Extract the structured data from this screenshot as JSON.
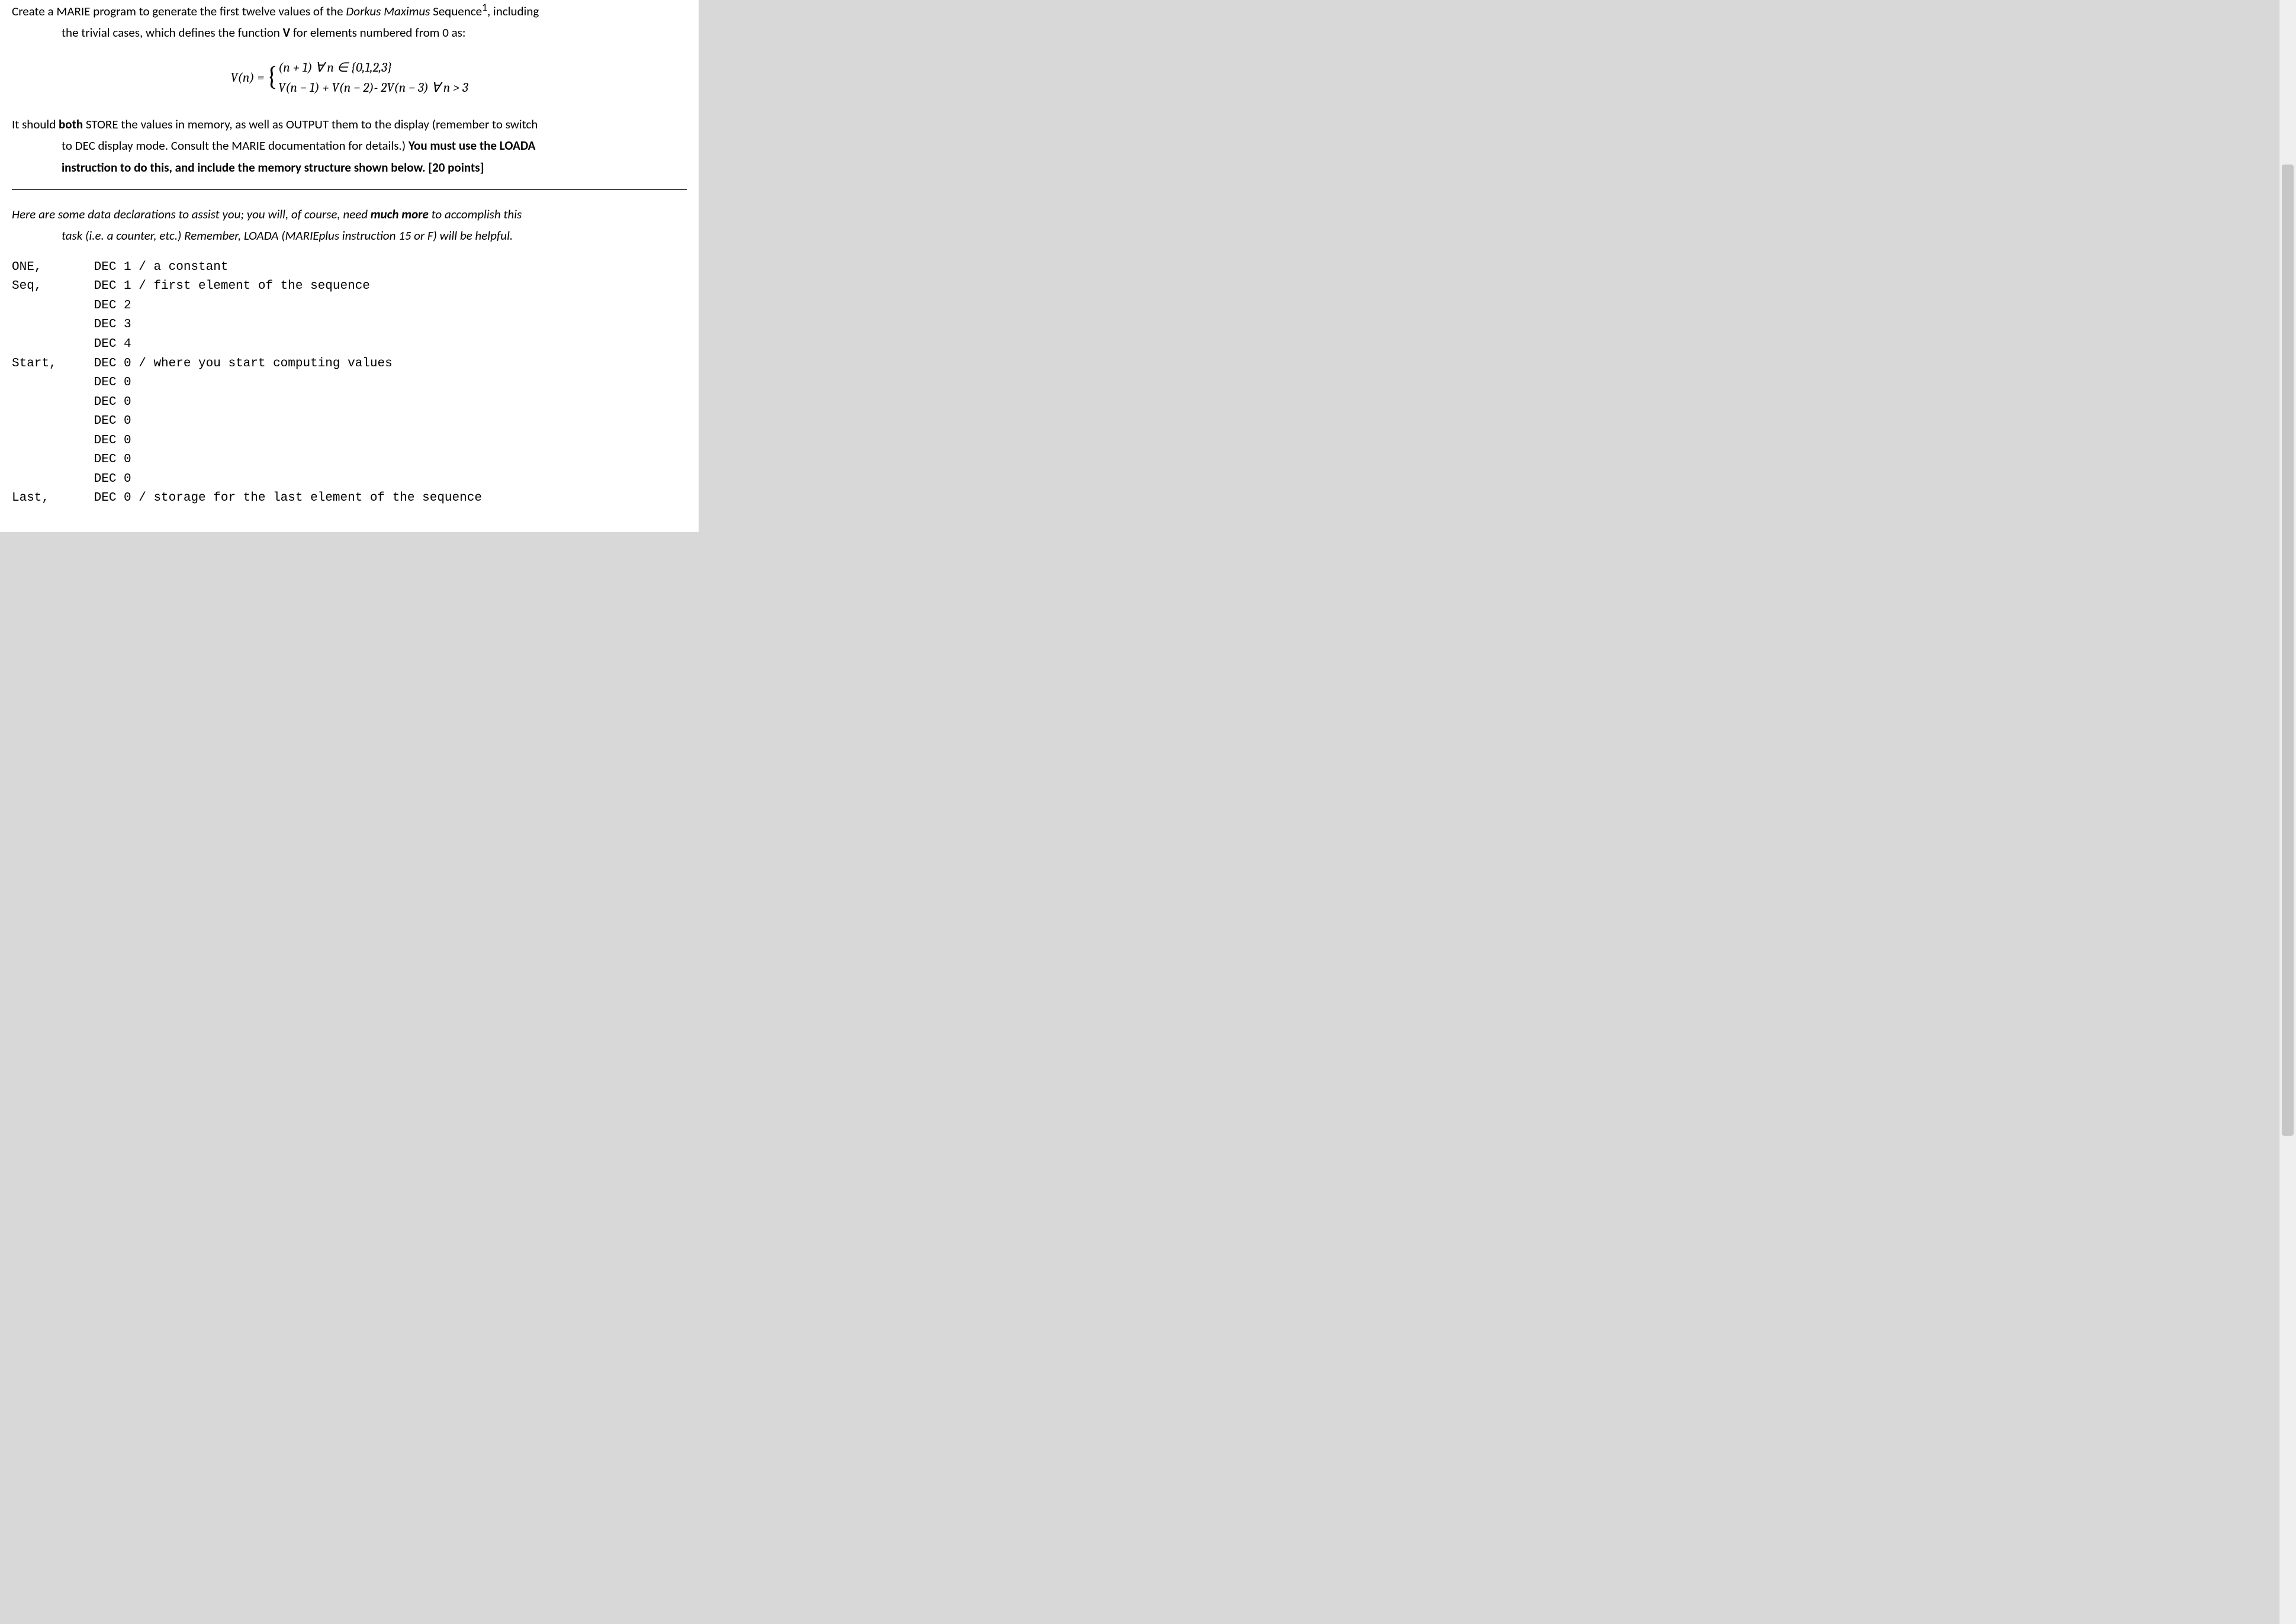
{
  "colors": {
    "page_bg": "#ffffff",
    "outer_bg": "#d8d8d8",
    "text": "#000000",
    "rule": "#000000",
    "scrollbar_track": "#efefef",
    "scrollbar_thumb": "#c6c6c6"
  },
  "typography": {
    "body_family": "Calibri, Segoe UI, Arial, sans-serif",
    "body_size_pt": 16,
    "mono_family": "Courier New, monospace",
    "math_family": "Cambria, Times New Roman, serif",
    "math_size_pt": 16,
    "line_height": 1.45
  },
  "scrollbar": {
    "thumb_top_pct": 10,
    "thumb_height_pct": 60
  },
  "intro": {
    "line1_prefix": "Create a MARIE program to generate the first twelve values of the ",
    "line1_seqname": "Dorkus Maximus",
    "line1_after_seqname": " Sequence",
    "line1_sup": "1",
    "line1_suffix": ", including",
    "line2": "the trivial cases, which defines the function ",
    "line2_bold": "V",
    "line2_tail": " for elements numbered from 0 as:"
  },
  "formula": {
    "lhs": "V(n) = ",
    "case1": "(n + 1) ∀ n ∈ {0,1,2,3}",
    "case2": "V(n − 1)  +  V(n − 2)- 2V(n − 3)  ∀ n >  3"
  },
  "req": {
    "p1_a": "It should ",
    "p1_b": "both",
    "p1_c": " STORE the values in memory, as well as OUTPUT them to the display (remember to switch",
    "p2_a": "to DEC display mode.  Consult the MARIE documentation for details.)  ",
    "p2_b": "You must use the LOADA",
    "p3_b": "instruction to do this, and include the memory structure shown below.  [20 points]"
  },
  "helper": {
    "l1_a": "Here are some data declarations to assist you; you will, of course, need ",
    "l1_b": "much more",
    "l1_c": " to accomplish this",
    "l2": "task (i.e. a counter, etc.)  Remember, LOADA (MARIEplus instruction 15 or F) will be helpful."
  },
  "decls": {
    "rows": [
      {
        "label": "ONE,",
        "body": "DEC 1 / a constant"
      },
      {
        "label": "Seq,",
        "body": "DEC 1 / first element of the sequence"
      },
      {
        "label": "",
        "body": "DEC 2"
      },
      {
        "label": "",
        "body": "DEC 3"
      },
      {
        "label": "",
        "body": "DEC 4"
      },
      {
        "label": "Start,",
        "body": "DEC 0 / where you start computing values"
      },
      {
        "label": "",
        "body": "DEC 0"
      },
      {
        "label": "",
        "body": "DEC 0"
      },
      {
        "label": "",
        "body": "DEC 0"
      },
      {
        "label": "",
        "body": "DEC 0"
      },
      {
        "label": "",
        "body": "DEC 0"
      },
      {
        "label": "",
        "body": "DEC 0"
      },
      {
        "label": "Last,",
        "body": "DEC 0 / storage for the last element of the sequence"
      }
    ],
    "label_col_chars": 11
  }
}
